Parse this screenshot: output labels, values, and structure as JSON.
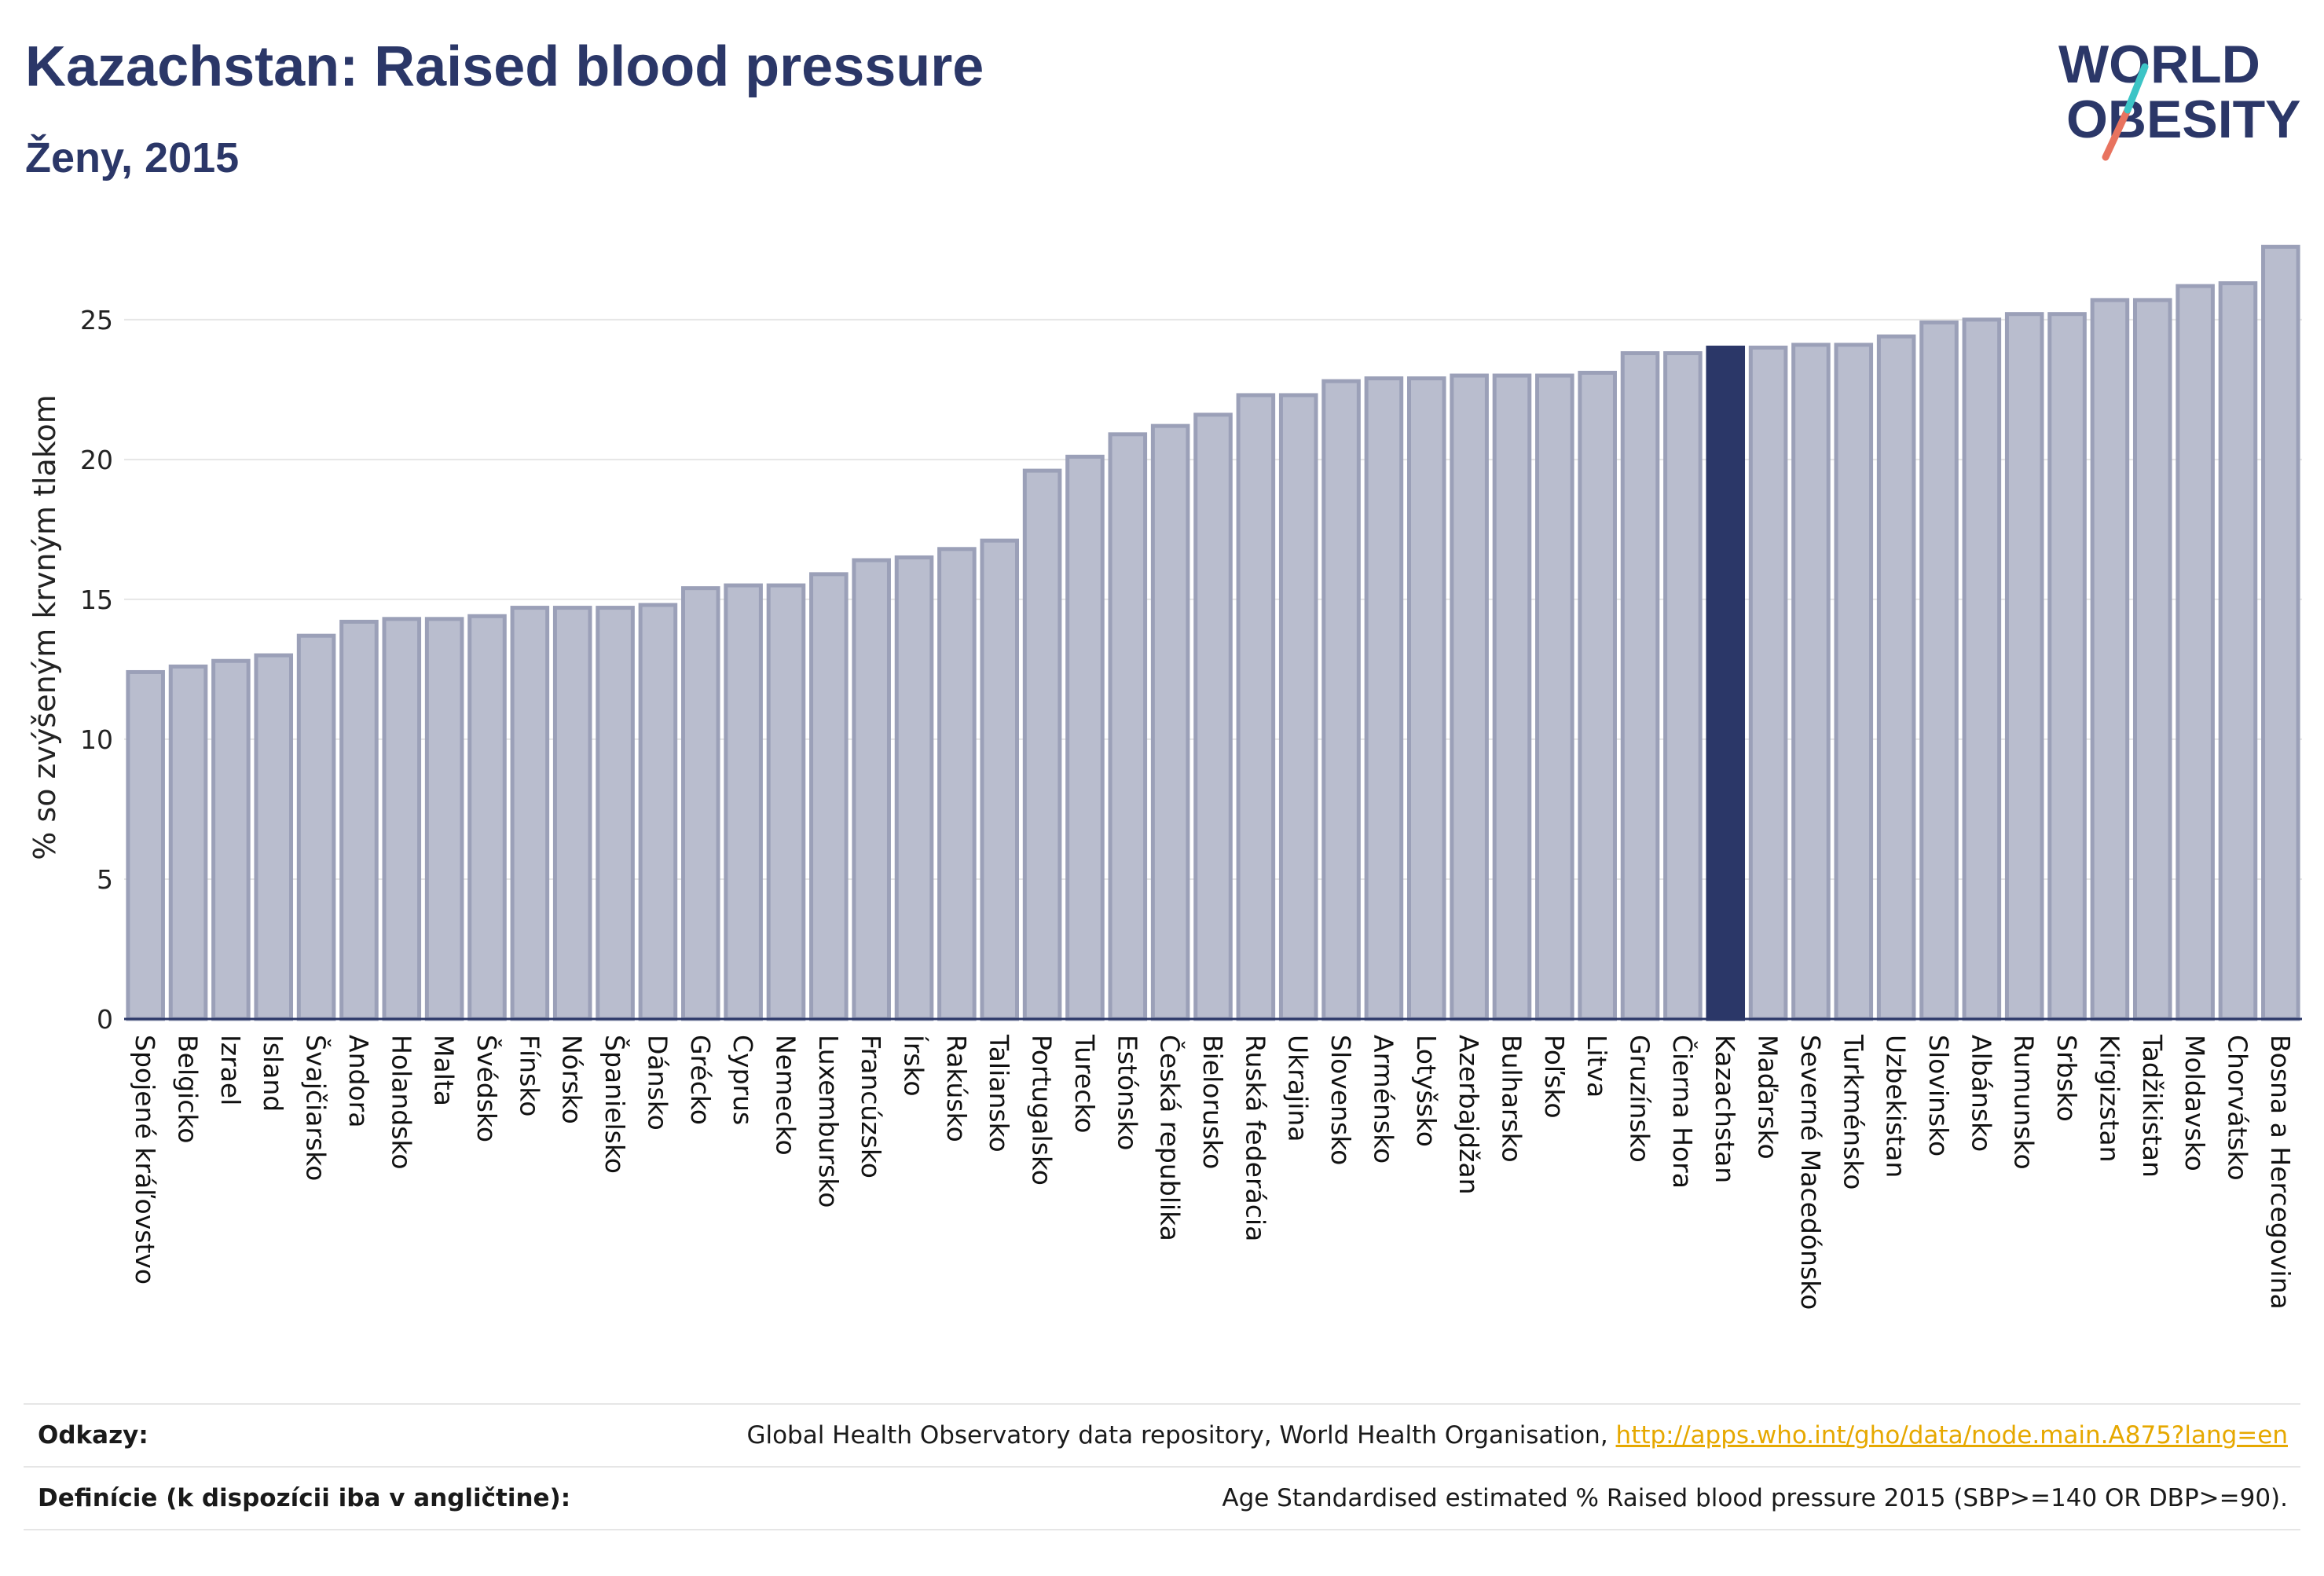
{
  "header": {
    "title": "Kazachstan: Raised blood pressure",
    "subtitle": "Ženy, 2015"
  },
  "logo": {
    "line1": "WORLD",
    "line2": "OBESITY"
  },
  "colors": {
    "bar": "#b9bdce",
    "bar_border": "#9ba0b8",
    "highlight": "#2b3768",
    "title": "#2b3768",
    "grid": "#e6e6e6",
    "link": "#e6a800"
  },
  "chart_data": {
    "type": "bar",
    "ylabel": "% so zvýšeným krvným tlakom",
    "ylim": [
      0,
      28
    ],
    "yticks": [
      0,
      5,
      10,
      15,
      20,
      25
    ],
    "grid": true,
    "highlight": "Kazachstan",
    "categories": [
      "Spojené kráľovstvo",
      "Belgicko",
      "Izrael",
      "Island",
      "Švajčiarsko",
      "Andora",
      "Holandsko",
      "Malta",
      "Švédsko",
      "Fínsko",
      "Nórsko",
      "Španielsko",
      "Dánsko",
      "Grécko",
      "Cyprus",
      "Nemecko",
      "Luxembursko",
      "Francúzsko",
      "Írsko",
      "Rakúsko",
      "Taliansko",
      "Portugalsko",
      "Turecko",
      "Estónsko",
      "Česká republika",
      "Bielorusko",
      "Ruská federácia",
      "Ukrajina",
      "Slovensko",
      "Arménsko",
      "Lotyšsko",
      "Azerbajdžan",
      "Bulharsko",
      "Poľsko",
      "Litva",
      "Gruzínsko",
      "Čierna Hora",
      "Kazachstan",
      "Maďarsko",
      "Severné Macedónsko",
      "Turkménsko",
      "Uzbekistan",
      "Slovinsko",
      "Albánsko",
      "Rumunsko",
      "Srbsko",
      "Kirgizstan",
      "Tadžikistan",
      "Moldavsko",
      "Chorvátsko",
      "Bosna a Hercegovina"
    ],
    "values": [
      12.4,
      12.6,
      12.8,
      13.0,
      13.7,
      14.2,
      14.3,
      14.3,
      14.4,
      14.7,
      14.7,
      14.7,
      14.8,
      15.4,
      15.5,
      15.5,
      15.9,
      16.4,
      16.5,
      16.8,
      17.1,
      19.6,
      20.1,
      20.9,
      21.2,
      21.6,
      22.3,
      22.3,
      22.8,
      22.9,
      22.9,
      23.0,
      23.0,
      23.0,
      23.1,
      23.8,
      23.8,
      24.0,
      24.0,
      24.1,
      24.1,
      24.4,
      24.9,
      25.0,
      25.2,
      25.2,
      25.7,
      25.7,
      26.2,
      26.3,
      27.6
    ]
  },
  "footer": {
    "refs_label": "Odkazy:",
    "refs_text": "Global Health Observatory data repository, World Health Organisation, ",
    "refs_link": "http://apps.who.int/gho/data/node.main.A875?lang=en",
    "def_label": "Definície (k dispozícii iba v angličtine):",
    "def_text": "Age Standardised estimated % Raised blood pressure 2015 (SBP>=140 OR DBP>=90)."
  }
}
